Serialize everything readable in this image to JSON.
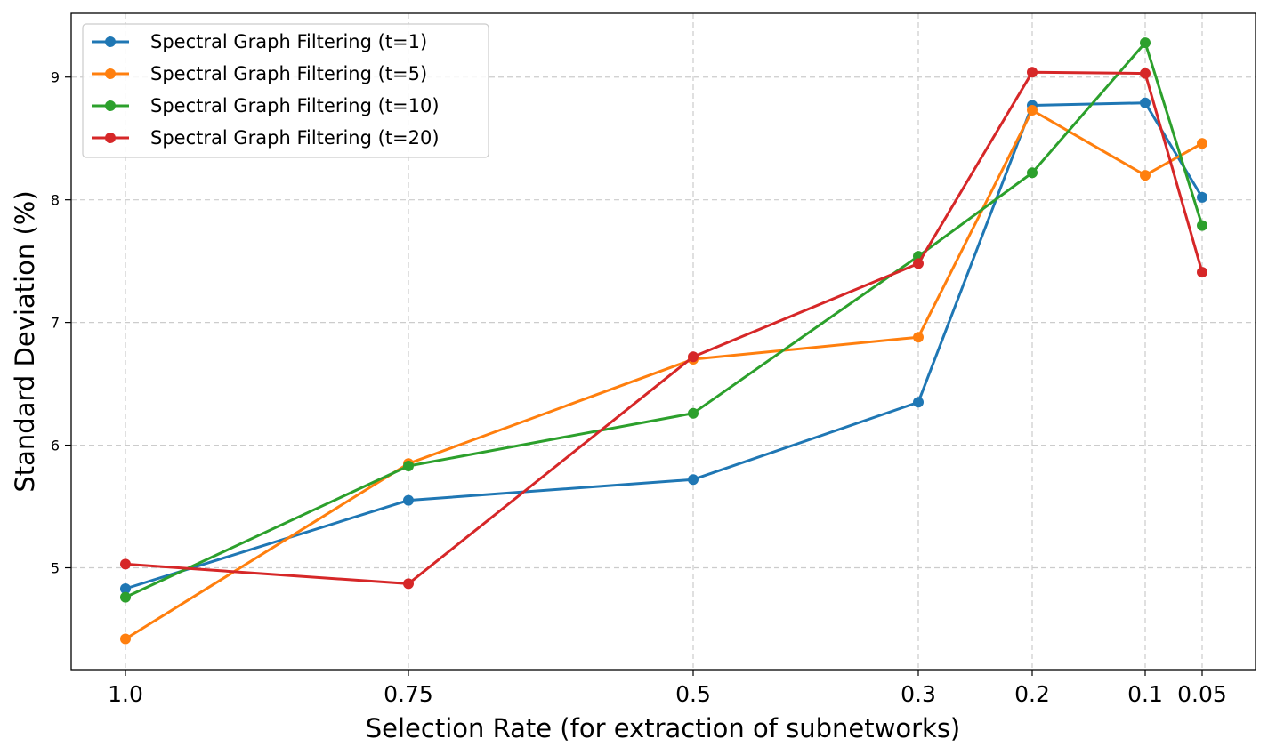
{
  "chart_data": {
    "type": "line",
    "xlabel": "Selection Rate (for extraction of subnetworks)",
    "ylabel": "Standard Deviation (%)",
    "x_scale": "log",
    "x_direction": "descending",
    "x": [
      1.0,
      0.75,
      0.5,
      0.3,
      0.2,
      0.1,
      0.05
    ],
    "x_tick_labels": [
      "1.0",
      "0.75",
      "0.5",
      "0.3",
      "0.2",
      "0.1",
      "0.05"
    ],
    "y_ticks": [
      5,
      6,
      7,
      8,
      9
    ],
    "y_tick_labels": [
      "5",
      "6",
      "7",
      "8",
      "9"
    ],
    "ylim": [
      4.17,
      9.52
    ],
    "grid": true,
    "legend_position": "upper-left",
    "series": [
      {
        "name": "Spectral Graph Filtering (t=1)",
        "color": "#1f77b4",
        "values": [
          4.83,
          5.55,
          5.72,
          6.35,
          8.77,
          8.79,
          8.02
        ]
      },
      {
        "name": "Spectral Graph Filtering (t=5)",
        "color": "#ff7f0e",
        "values": [
          4.42,
          5.85,
          6.7,
          6.88,
          8.73,
          8.2,
          8.46
        ]
      },
      {
        "name": "Spectral Graph Filtering (t=10)",
        "color": "#2ca02c",
        "values": [
          4.76,
          5.83,
          6.26,
          7.54,
          8.22,
          9.28,
          7.79
        ]
      },
      {
        "name": "Spectral Graph Filtering (t=20)",
        "color": "#d62728",
        "values": [
          5.03,
          4.87,
          6.72,
          7.48,
          9.04,
          9.03,
          7.41
        ]
      }
    ]
  }
}
